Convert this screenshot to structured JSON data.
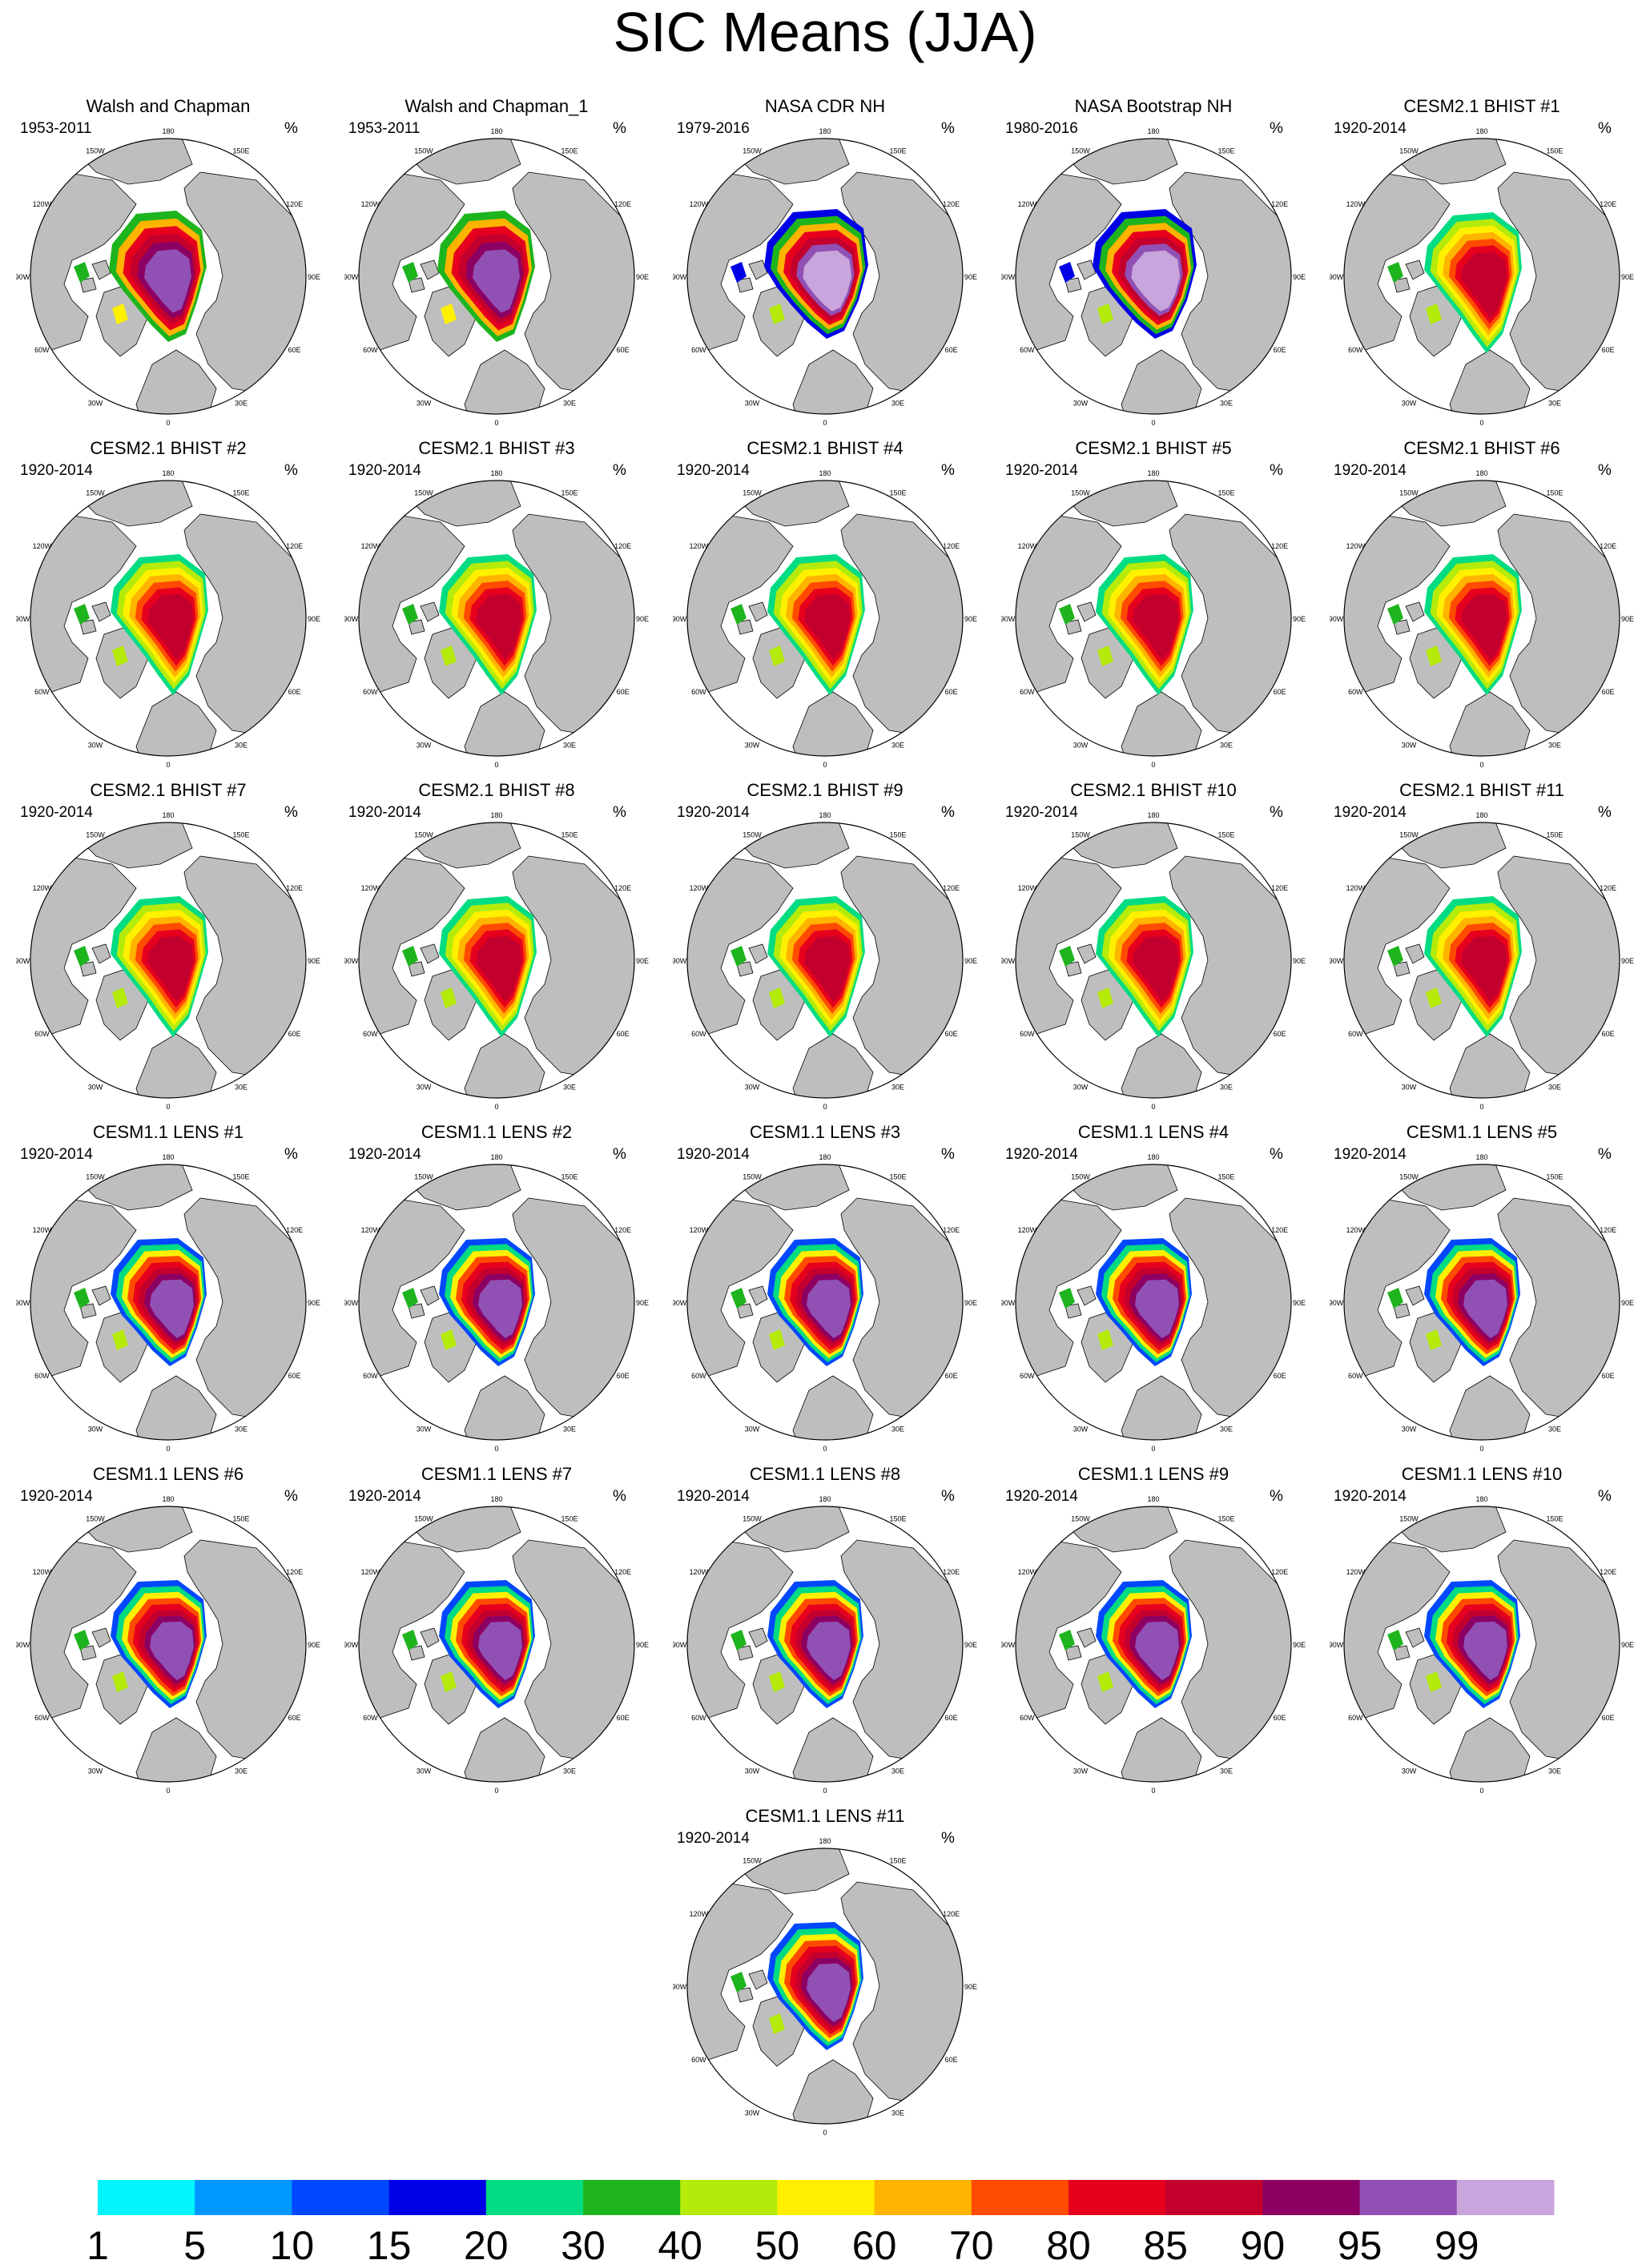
{
  "figure": {
    "title": "SIC Means (JJA)",
    "unit": "%"
  },
  "longitude_labels": [
    "180",
    "150E",
    "120E",
    "90E",
    "60E",
    "30E",
    "0",
    "30W",
    "60W",
    "90W",
    "120W",
    "150W"
  ],
  "panels": [
    {
      "title": "Walsh and Chapman",
      "period": "1953-2011",
      "style": "wc"
    },
    {
      "title": "Walsh and Chapman_1",
      "period": "1953-2011",
      "style": "wc"
    },
    {
      "title": "NASA CDR NH",
      "period": "1979-2016",
      "style": "obs"
    },
    {
      "title": "NASA Bootstrap NH",
      "period": "1980-2016",
      "style": "obs"
    },
    {
      "title": "CESM2.1 BHIST #1",
      "period": "1920-2014",
      "style": "cesm2"
    },
    {
      "title": "CESM2.1 BHIST #2",
      "period": "1920-2014",
      "style": "cesm2"
    },
    {
      "title": "CESM2.1 BHIST #3",
      "period": "1920-2014",
      "style": "cesm2"
    },
    {
      "title": "CESM2.1 BHIST #4",
      "period": "1920-2014",
      "style": "cesm2"
    },
    {
      "title": "CESM2.1 BHIST #5",
      "period": "1920-2014",
      "style": "cesm2"
    },
    {
      "title": "CESM2.1 BHIST #6",
      "period": "1920-2014",
      "style": "cesm2"
    },
    {
      "title": "CESM2.1 BHIST #7",
      "period": "1920-2014",
      "style": "cesm2"
    },
    {
      "title": "CESM2.1 BHIST #8",
      "period": "1920-2014",
      "style": "cesm2"
    },
    {
      "title": "CESM2.1 BHIST #9",
      "period": "1920-2014",
      "style": "cesm2"
    },
    {
      "title": "CESM2.1 BHIST #10",
      "period": "1920-2014",
      "style": "cesm2"
    },
    {
      "title": "CESM2.1 BHIST #11",
      "period": "1920-2014",
      "style": "cesm2"
    },
    {
      "title": "CESM1.1 LENS #1",
      "period": "1920-2014",
      "style": "lens"
    },
    {
      "title": "CESM1.1 LENS #2",
      "period": "1920-2014",
      "style": "lens"
    },
    {
      "title": "CESM1.1 LENS #3",
      "period": "1920-2014",
      "style": "lens"
    },
    {
      "title": "CESM1.1 LENS #4",
      "period": "1920-2014",
      "style": "lens"
    },
    {
      "title": "CESM1.1 LENS #5",
      "period": "1920-2014",
      "style": "lens"
    },
    {
      "title": "CESM1.1 LENS #6",
      "period": "1920-2014",
      "style": "lens"
    },
    {
      "title": "CESM1.1 LENS #7",
      "period": "1920-2014",
      "style": "lens"
    },
    {
      "title": "CESM1.1 LENS #8",
      "period": "1920-2014",
      "style": "lens"
    },
    {
      "title": "CESM1.1 LENS #9",
      "period": "1920-2014",
      "style": "lens"
    },
    {
      "title": "CESM1.1 LENS #10",
      "period": "1920-2014",
      "style": "lens"
    },
    {
      "title": "CESM1.1 LENS #11",
      "period": "1920-2014",
      "style": "lens"
    }
  ],
  "chart_data": {
    "type": "heatmap",
    "projection": "north polar stereographic",
    "title": "SIC Means (JJA)",
    "units": "%",
    "colorbar": {
      "levels": [
        "1",
        "5",
        "10",
        "15",
        "20",
        "30",
        "40",
        "50",
        "60",
        "70",
        "80",
        "85",
        "90",
        "95",
        "99"
      ],
      "colors": [
        "#00f5ff",
        "#0097ff",
        "#0048ff",
        "#0000e6",
        "#00dc82",
        "#1eb41e",
        "#b4eb0a",
        "#fff000",
        "#ffb400",
        "#ff4b00",
        "#e6001e",
        "#c3002d",
        "#8c0064",
        "#9150b4",
        "#c8a5dc"
      ]
    },
    "map_colors": {
      "land": "#bebebe",
      "ocean": "#ffffff",
      "coast": "#000000"
    }
  }
}
